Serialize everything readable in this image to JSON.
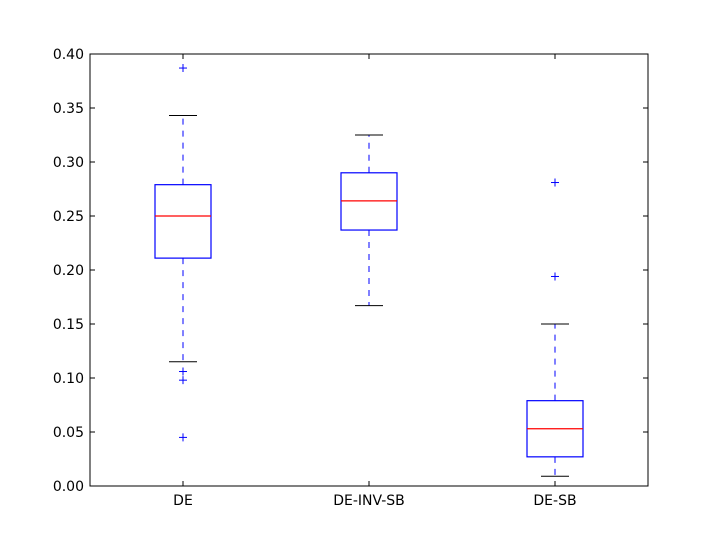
{
  "chart_data": {
    "type": "box",
    "title": "",
    "xlabel": "",
    "ylabel": "",
    "ylim": [
      0.0,
      0.4
    ],
    "yticks": [
      "0.00",
      "0.05",
      "0.10",
      "0.15",
      "0.20",
      "0.25",
      "0.30",
      "0.35",
      "0.40"
    ],
    "grid": false,
    "categories": [
      "DE",
      "DE-INV-SB",
      "DE-SB"
    ],
    "boxes": [
      {
        "label": "DE",
        "whisker_low": 0.115,
        "q1": 0.211,
        "median": 0.25,
        "q3": 0.279,
        "whisker_high": 0.343,
        "outliers": [
          0.387,
          0.106,
          0.098,
          0.045
        ]
      },
      {
        "label": "DE-INV-SB",
        "whisker_low": 0.167,
        "q1": 0.237,
        "median": 0.264,
        "q3": 0.29,
        "whisker_high": 0.325,
        "outliers": []
      },
      {
        "label": "DE-SB",
        "whisker_low": 0.009,
        "q1": 0.027,
        "median": 0.053,
        "q3": 0.079,
        "whisker_high": 0.15,
        "outliers": [
          0.281,
          0.194
        ]
      }
    ],
    "colors": {
      "box": "#0000ff",
      "median": "#ff0000",
      "whisker": "#0000ff",
      "cap": "#000000",
      "outlier": "#0000ff"
    }
  }
}
